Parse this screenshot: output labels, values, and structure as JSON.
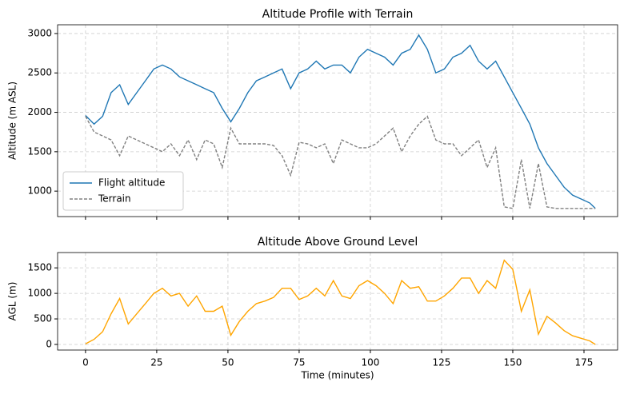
{
  "chart_data": [
    {
      "type": "line",
      "title": "Altitude Profile with Terrain",
      "ylabel": "Altitude (m ASL)",
      "x": [
        0,
        3,
        6,
        9,
        12,
        15,
        18,
        21,
        24,
        27,
        30,
        33,
        36,
        39,
        42,
        45,
        48,
        51,
        54,
        57,
        60,
        63,
        66,
        69,
        72,
        75,
        78,
        81,
        84,
        87,
        90,
        93,
        96,
        99,
        102,
        105,
        108,
        111,
        114,
        117,
        120,
        123,
        126,
        129,
        132,
        135,
        138,
        141,
        144,
        147,
        150,
        153,
        156,
        159,
        162,
        165,
        168,
        171,
        174,
        177,
        179
      ],
      "series": [
        {
          "name": "Flight altitude",
          "color": "#1f77b4",
          "linestyle": "solid",
          "values": [
            1960,
            1850,
            1950,
            2250,
            2350,
            2100,
            2250,
            2400,
            2550,
            2600,
            2550,
            2450,
            2400,
            2350,
            2300,
            2250,
            2050,
            1880,
            2050,
            2250,
            2400,
            2450,
            2500,
            2550,
            2300,
            2500,
            2550,
            2650,
            2550,
            2600,
            2600,
            2500,
            2700,
            2800,
            2750,
            2700,
            2600,
            2750,
            2800,
            2980,
            2800,
            2500,
            2550,
            2700,
            2750,
            2850,
            2650,
            2550,
            2650,
            2450,
            2250,
            2050,
            1850,
            1550,
            1350,
            1200,
            1050,
            950,
            900,
            850,
            780
          ]
        },
        {
          "name": "Terrain",
          "color": "#808080",
          "linestyle": "dashed",
          "values": [
            1950,
            1750,
            1700,
            1650,
            1450,
            1700,
            1650,
            1600,
            1550,
            1500,
            1600,
            1450,
            1650,
            1400,
            1650,
            1600,
            1300,
            1800,
            1600,
            1600,
            1600,
            1600,
            1580,
            1450,
            1200,
            1620,
            1600,
            1550,
            1600,
            1350,
            1650,
            1600,
            1550,
            1550,
            1600,
            1700,
            1800,
            1500,
            1700,
            1850,
            1950,
            1650,
            1600,
            1600,
            1450,
            1550,
            1650,
            1300,
            1550,
            800,
            780,
            1400,
            780,
            1350,
            800,
            780,
            780,
            780,
            780,
            780,
            780
          ]
        }
      ],
      "xlim": [
        -9.8,
        186.8
      ],
      "xticks": [
        0,
        25,
        50,
        75,
        100,
        125,
        150,
        175
      ],
      "ylim": [
        677,
        3111
      ],
      "yticks": [
        1000,
        1500,
        2000,
        2500,
        3000
      ],
      "grid": true,
      "legend": "lower left"
    },
    {
      "type": "line",
      "title": "Altitude Above Ground Level",
      "ylabel": "AGL (m)",
      "xlabel": "Time (minutes)",
      "x": [
        0,
        3,
        6,
        9,
        12,
        15,
        18,
        21,
        24,
        27,
        30,
        33,
        36,
        39,
        42,
        45,
        48,
        51,
        54,
        57,
        60,
        63,
        66,
        69,
        72,
        75,
        78,
        81,
        84,
        87,
        90,
        93,
        96,
        99,
        102,
        105,
        108,
        111,
        114,
        117,
        120,
        123,
        126,
        129,
        132,
        135,
        138,
        141,
        144,
        147,
        150,
        153,
        156,
        159,
        162,
        165,
        168,
        171,
        174,
        177,
        179
      ],
      "color": "#ffa500",
      "values": [
        10,
        100,
        250,
        600,
        900,
        400,
        600,
        800,
        1000,
        1100,
        950,
        1000,
        750,
        950,
        650,
        650,
        750,
        180,
        450,
        650,
        800,
        850,
        920,
        1100,
        1100,
        880,
        950,
        1100,
        950,
        1250,
        950,
        900,
        1150,
        1250,
        1150,
        1000,
        800,
        1250,
        1100,
        1130,
        850,
        850,
        950,
        1100,
        1300,
        1300,
        1000,
        1250,
        1100,
        1650,
        1470,
        650,
        1070,
        200,
        550,
        420,
        270,
        170,
        120,
        70,
        0
      ],
      "xlim": [
        -9.8,
        186.8
      ],
      "xticks": [
        0,
        25,
        50,
        75,
        100,
        125,
        150,
        175
      ],
      "ylim": [
        -110,
        1800
      ],
      "yticks": [
        0,
        500,
        1000,
        1500
      ],
      "grid": true
    }
  ]
}
